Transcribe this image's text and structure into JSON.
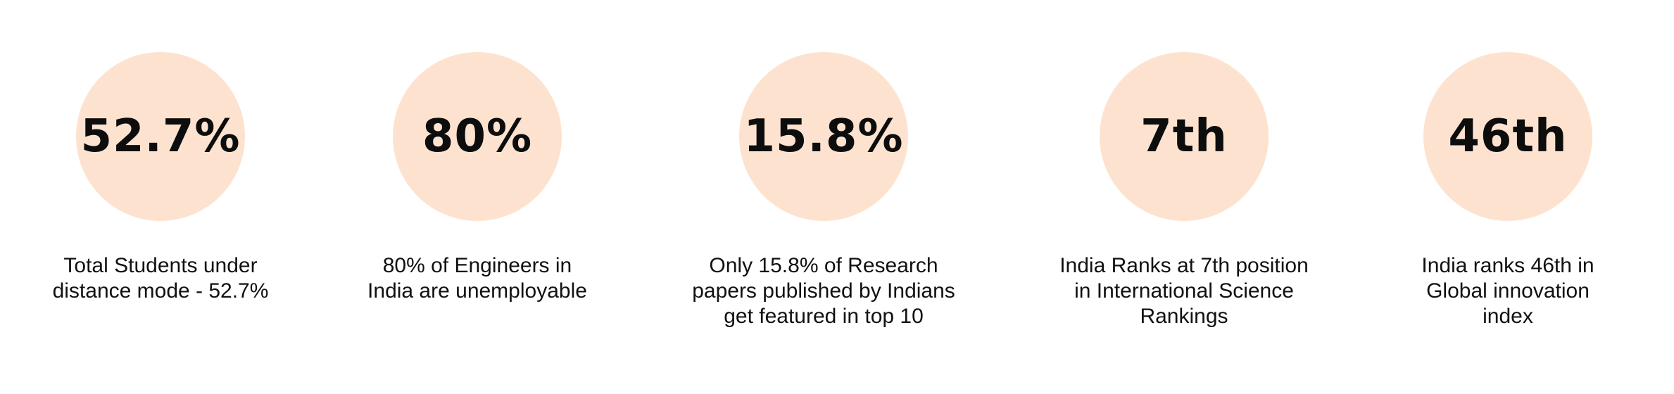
{
  "stats": [
    {
      "value": "52.7%",
      "caption_lines": [
        "Total Students under",
        "distance mode - 52.7%"
      ]
    },
    {
      "value": "80%",
      "caption_lines": [
        "80% of Engineers in",
        "India are unemployable"
      ]
    },
    {
      "value": "15.8%",
      "caption_lines": [
        "Only 15.8% of Research",
        "papers published by Indians",
        "get featured in top 10"
      ]
    },
    {
      "value": "7th",
      "caption_lines": [
        "India Ranks at 7th position",
        "in International Science",
        "Rankings"
      ]
    },
    {
      "value": "46th",
      "caption_lines": [
        "India ranks 46th in",
        "Global innovation",
        "index"
      ]
    }
  ],
  "colors": {
    "circle_fill": "#fde3cf",
    "value_text": "#0d0d0d",
    "caption_text": "#111111"
  }
}
